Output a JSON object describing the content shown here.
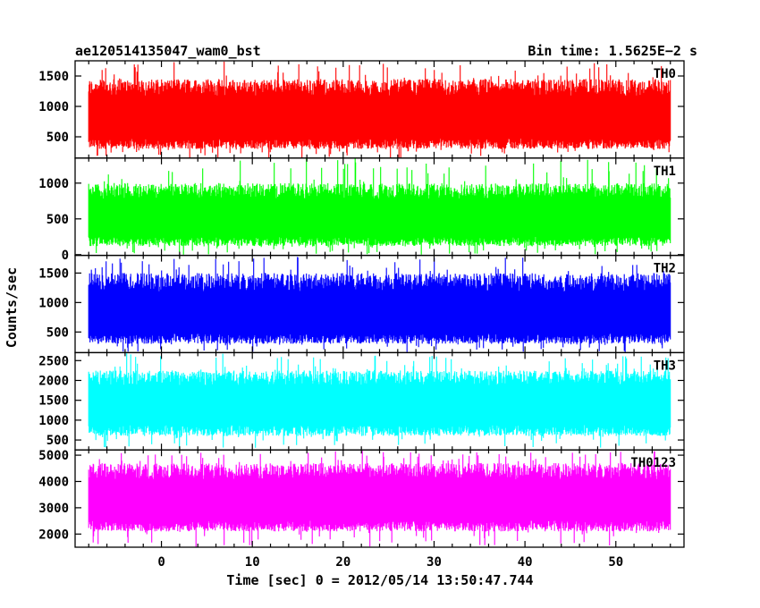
{
  "chart_data": {
    "type": "line",
    "title_left": "ae120514135047_wam0_bst",
    "title_right": "Bin time: 1.5625E−2 s",
    "xlabel": "Time [sec] 0 = 2012/05/14 13:50:47.744",
    "ylabel": "Counts/sec",
    "xlim": [
      -9.5,
      57.5
    ],
    "x_ticks": [
      0,
      10,
      20,
      30,
      40,
      50
    ],
    "x_tick_labels": [
      "0",
      "10",
      "20",
      "30",
      "40",
      "50"
    ],
    "data_x_range": [
      -8,
      56
    ],
    "bin_time_s": 0.015625,
    "grid": false,
    "panels": [
      {
        "name": "TH0",
        "color": "#ff0000",
        "ylim": [
          150,
          1750
        ],
        "y_ticks": [
          500,
          1000,
          1500
        ],
        "y_tick_labels": [
          "500",
          "1000",
          "1500"
        ],
        "typical_range": [
          300,
          1450
        ],
        "mean": 800,
        "peak_max": 1750,
        "floor_min": 150
      },
      {
        "name": "TH1",
        "color": "#00ff00",
        "ylim": [
          -10,
          1350
        ],
        "y_ticks": [
          0,
          500,
          1000
        ],
        "y_tick_labels": [
          "0",
          "500",
          "1000"
        ],
        "typical_range": [
          120,
          1000
        ],
        "mean": 500,
        "peak_max": 1350,
        "floor_min": 0
      },
      {
        "name": "TH2",
        "color": "#0000ff",
        "ylim": [
          150,
          1800
        ],
        "y_ticks": [
          500,
          1000,
          1500
        ],
        "y_tick_labels": [
          "500",
          "1000",
          "1500"
        ],
        "typical_range": [
          300,
          1500
        ],
        "mean": 800,
        "peak_max": 1800,
        "floor_min": 150
      },
      {
        "name": "TH3",
        "color": "#00ffff",
        "ylim": [
          250,
          2700
        ],
        "y_ticks": [
          500,
          1000,
          1500,
          2000,
          2500
        ],
        "y_tick_labels": [
          "500",
          "1000",
          "1500",
          "2000",
          "2500"
        ],
        "typical_range": [
          600,
          2250
        ],
        "mean": 1400,
        "peak_max": 2700,
        "floor_min": 300
      },
      {
        "name": "TH0123",
        "color": "#ff00ff",
        "ylim": [
          1500,
          5200
        ],
        "y_ticks": [
          2000,
          3000,
          4000,
          5000
        ],
        "y_tick_labels": [
          "2000",
          "3000",
          "4000",
          "5000"
        ],
        "typical_range": [
          2100,
          4700
        ],
        "mean": 3300,
        "peak_max": 5200,
        "floor_min": 1500
      }
    ]
  }
}
